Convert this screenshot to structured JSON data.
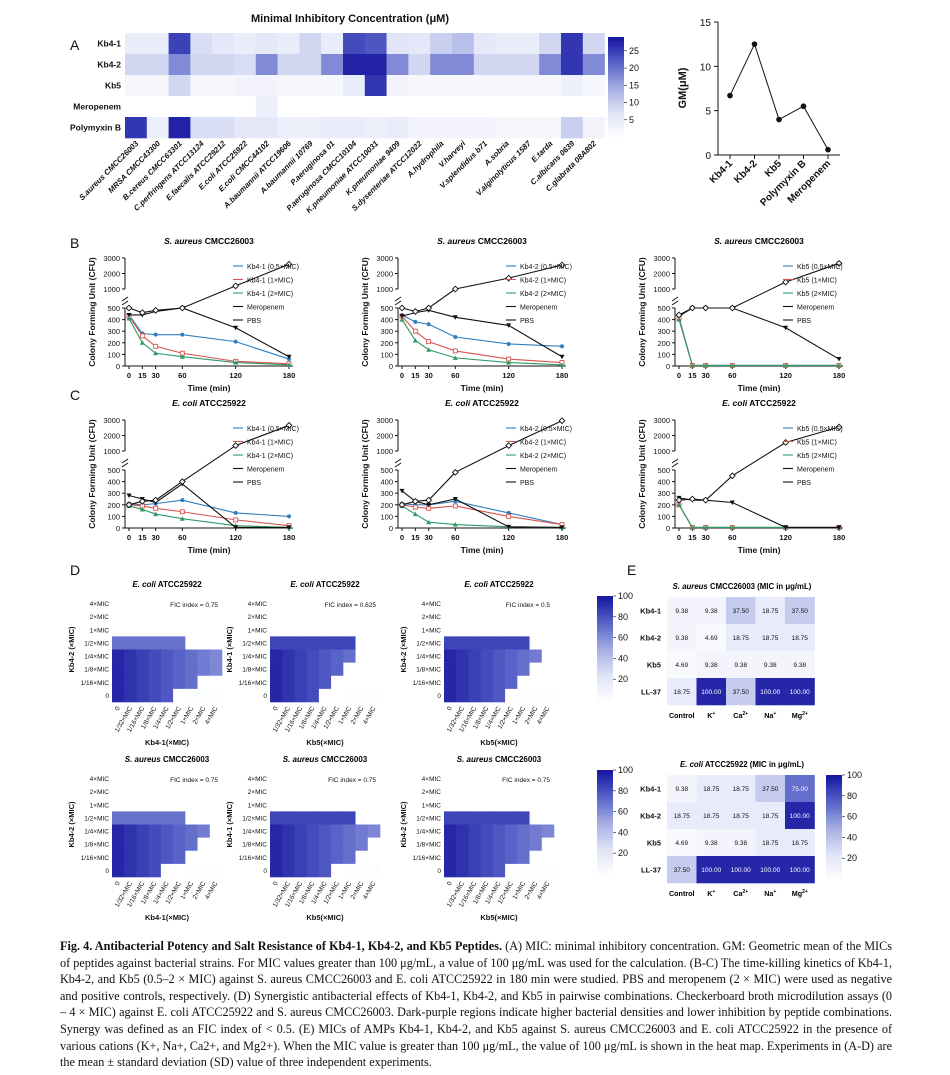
{
  "colors": {
    "dark": "#1a1aa0",
    "mid": "#5c6ad0",
    "light": "#c7cdee",
    "vlight": "#eef0fb",
    "white": "#ffffff",
    "kb1": "#2e7fc0",
    "kb2": "#d9534f",
    "kb3": "#2e9b66",
    "mero": "#111111",
    "pbs": "#111111"
  },
  "panelA": {
    "label": "A",
    "title": "Minimal Inhibitory Concentration (μM)",
    "rows": [
      "Kb4-1",
      "Kb4-2",
      "Kb5",
      "Meropenem",
      "Polymyxin B"
    ],
    "cols": [
      "S.aureus CMCC26003",
      "MRSA CMCC43300",
      "B.cereus CMCC63301",
      "C.perfringens ATCC13124",
      "E.faecalis ATCC29212",
      "E.coli ATCC25922",
      "E.coli CMCC44102",
      "A.baumannii ATCC19606",
      "A.baumannii 10769",
      "P.aeruginosa 01",
      "P.aeruginosa CMCC10104",
      "K.pneumoniae ATCC10031",
      "K.pneumoniae 9409",
      "S.dysenteriae ATCC12022",
      "A.hydrophila",
      "V.harveyi",
      "V.splendidus b71",
      "A.sobria",
      "V.alginolyticus 1587",
      "E.tarda",
      "C.albicans 0639",
      "C.glabrata 08A802"
    ],
    "values": [
      [
        5,
        5,
        25,
        8,
        6,
        5,
        6,
        5,
        9,
        5,
        24,
        23,
        7,
        6,
        10,
        12,
        6,
        5,
        5,
        9,
        26,
        9
      ],
      [
        9,
        9,
        18,
        9,
        9,
        8,
        18,
        9,
        9,
        18,
        28,
        28,
        18,
        9,
        18,
        18,
        9,
        9,
        9,
        18,
        26,
        18
      ],
      [
        2,
        2,
        9,
        2,
        2,
        3,
        3,
        2,
        2,
        2,
        5,
        26,
        3,
        2,
        2,
        2,
        2,
        2,
        2,
        2,
        4,
        2
      ],
      [
        0,
        0,
        0,
        0,
        0,
        0,
        4,
        0,
        0,
        0,
        0,
        0,
        0,
        0,
        0,
        0,
        0,
        0,
        0,
        0,
        0,
        0
      ],
      [
        26,
        4,
        28,
        8,
        8,
        6,
        6,
        4,
        4,
        5,
        5,
        4,
        5,
        3,
        3,
        3,
        3,
        2,
        2,
        2,
        10,
        3
      ]
    ],
    "colorbar": {
      "ticks": [
        "25",
        "20",
        "15",
        "10",
        "5"
      ]
    }
  },
  "panelGM": {
    "ylabel": "GM(μM)",
    "chart_data": {
      "type": "line",
      "categories": [
        "Kb4-1",
        "Kb4-2",
        "Kb5",
        "Polymyxin B",
        "Meropenem"
      ],
      "values": [
        6.7,
        12.5,
        4.0,
        5.5,
        0.6
      ],
      "ylim": [
        0,
        15
      ],
      "yticks": [
        "0",
        "5",
        "10",
        "15"
      ],
      "ylabel": "GM(μM)"
    }
  },
  "panelB": {
    "label": "B"
  },
  "panelC": {
    "label": "C"
  },
  "killcurves": {
    "xlabel": "Time (min)",
    "ylabel": "Colony Forming Unit (CFU)",
    "xticks": [
      "0",
      "15",
      "30",
      "60",
      "120",
      "180"
    ],
    "yticksLow": [
      "0",
      "100",
      "200",
      "300",
      "400",
      "500"
    ],
    "yticksHigh": [
      "1000",
      "2000",
      "3000"
    ],
    "chart_data": [
      {
        "type": "line",
        "title_sp": "S. aureus",
        "title_strain": " CMCC26003",
        "series": [
          {
            "name": "Kb4-1 (0.5×MIC)",
            "values": [
              440,
              280,
              270,
              270,
              210,
              60
            ]
          },
          {
            "name": "Kb4-1 (1×MIC)",
            "values": [
              430,
              260,
              170,
              110,
              40,
              20
            ]
          },
          {
            "name": "Kb4-1 (2×MIC)",
            "values": [
              410,
              200,
              110,
              80,
              30,
              10
            ]
          },
          {
            "name": "Meropenem",
            "values": [
              440,
              440,
              470,
              580,
              330,
              80
            ]
          },
          {
            "name": "PBS",
            "values": [
              520,
              460,
              480,
              540,
              1200,
              2600
            ]
          }
        ]
      },
      {
        "type": "line",
        "title_sp": "S. aureus",
        "title_strain": " CMCC26003",
        "series": [
          {
            "name": "Kb4-2 (0.5×MIC)",
            "values": [
              440,
              380,
              360,
              250,
              190,
              170
            ]
          },
          {
            "name": "Kb4-2 (1×MIC)",
            "values": [
              430,
              300,
              210,
              130,
              60,
              30
            ]
          },
          {
            "name": "Kb4-2 (2×MIC)",
            "values": [
              400,
              220,
              140,
              70,
              30,
              10
            ]
          },
          {
            "name": "Meropenem",
            "values": [
              430,
              460,
              480,
              420,
              350,
              80
            ]
          },
          {
            "name": "PBS",
            "values": [
              500,
              470,
              520,
              750,
              1700,
              2550
            ]
          }
        ]
      },
      {
        "type": "line",
        "title_sp": "S. aureus",
        "title_strain": " CMCC26003",
        "series": [
          {
            "name": "Kb5 (0.5×MIC)",
            "values": [
              420,
              5,
              5,
              5,
              5,
              5
            ]
          },
          {
            "name": "Kb5 (1×MIC)",
            "values": [
              410,
              5,
              5,
              5,
              5,
              5
            ]
          },
          {
            "name": "Kb5 (2×MIC)",
            "values": [
              400,
              5,
              5,
              5,
              5,
              5
            ]
          },
          {
            "name": "Meropenem",
            "values": [
              430,
              500,
              580,
              580,
              330,
              60
            ]
          },
          {
            "name": "PBS",
            "values": [
              440,
              500,
              610,
              700,
              1450,
              2650
            ]
          }
        ]
      },
      {
        "type": "line",
        "title_sp": "E. coli",
        "title_strain": " ATCC25922",
        "series": [
          {
            "name": "Kb4-1 (0.5×MIC)",
            "values": [
              210,
              200,
              210,
              240,
              130,
              100
            ]
          },
          {
            "name": "Kb4-1 (1×MIC)",
            "values": [
              200,
              190,
              170,
              140,
              70,
              20
            ]
          },
          {
            "name": "Kb4-1 (2×MIC)",
            "values": [
              190,
              160,
              120,
              80,
              20,
              5
            ]
          },
          {
            "name": "Meropenem",
            "values": [
              280,
              250,
              220,
              380,
              5,
              5
            ]
          },
          {
            "name": "PBS",
            "values": [
              200,
              230,
              240,
              400,
              1350,
              2650
            ]
          }
        ]
      },
      {
        "type": "line",
        "title_sp": "E. coli",
        "title_strain": " ATCC25922",
        "series": [
          {
            "name": "Kb4-2 (0.5×MIC)",
            "values": [
              210,
              200,
              200,
              230,
              130,
              30
            ]
          },
          {
            "name": "Kb4-2 (1×MIC)",
            "values": [
              200,
              180,
              170,
              190,
              100,
              30
            ]
          },
          {
            "name": "Kb4-2 (2×MIC)",
            "values": [
              190,
              120,
              50,
              30,
              10,
              5
            ]
          },
          {
            "name": "Meropenem",
            "values": [
              320,
              230,
              200,
              250,
              10,
              5
            ]
          },
          {
            "name": "PBS",
            "values": [
              200,
              230,
              240,
              480,
              1350,
              2950
            ]
          }
        ]
      },
      {
        "type": "line",
        "title_sp": "E. coli",
        "title_strain": " ATCC25922",
        "series": [
          {
            "name": "Kb5 (0.5×MIC)",
            "values": [
              200,
              5,
              5,
              5,
              5,
              5
            ]
          },
          {
            "name": "Kb5 (1×MIC)",
            "values": [
              200,
              5,
              5,
              5,
              5,
              5
            ]
          },
          {
            "name": "Kb5 (2×MIC)",
            "values": [
              200,
              5,
              5,
              5,
              5,
              5
            ]
          },
          {
            "name": "Meropenem",
            "values": [
              260,
              240,
              240,
              220,
              5,
              5
            ]
          },
          {
            "name": "PBS",
            "values": [
              240,
              250,
              240,
              450,
              1550,
              2550
            ]
          }
        ]
      }
    ]
  },
  "panelD": {
    "label": "D",
    "yticks": [
      "4×MIC",
      "2×MIC",
      "1×MIC",
      "1/2×MIC",
      "1/4×MIC",
      "1/8×MIC",
      "1/16×MIC",
      "0"
    ],
    "xticks": [
      "0",
      "1/32×MIC",
      "1/16×MIC",
      "1/8×MIC",
      "1/4×MIC",
      "1/2×MIC",
      "1×MIC",
      "2×MIC",
      "4×MIC"
    ],
    "colorbar": [
      "100",
      "80",
      "60",
      "40",
      "20"
    ],
    "boards": [
      {
        "sp": "E. coli",
        "strain": " ATCC25922",
        "fic": "FIC index = 0.75",
        "xlabel": "Kb4-1(×MIC)",
        "ylabel": "Kb4-2 (×MIC)",
        "mode": "a"
      },
      {
        "sp": "E. coli",
        "strain": " ATCC25922",
        "fic": "FIC index = 0.625",
        "xlabel": "Kb5(×MIC)",
        "ylabel": "Kb4-1 (×MIC)",
        "mode": "b"
      },
      {
        "sp": "E. coli",
        "strain": " ATCC25922",
        "fic": "FIC index = 0.5",
        "xlabel": "Kb5(×MIC)",
        "ylabel": "Kb4-2 (×MIC)",
        "mode": "c"
      },
      {
        "sp": "S. aureus",
        "strain": " CMCC26003",
        "fic": "FIC index = 0.75",
        "xlabel": "Kb4-1(×MIC)",
        "ylabel": "Kb4-2 (×MIC)",
        "mode": "d"
      },
      {
        "sp": "S. aureus",
        "strain": " CMCC26003",
        "fic": "FIC index = 0.75",
        "xlabel": "Kb5(×MIC)",
        "ylabel": "Kb4-1 (×MIC)",
        "mode": "e"
      },
      {
        "sp": "S. aureus",
        "strain": " CMCC26003",
        "fic": "FIC index = 0.75",
        "xlabel": "Kb5(×MIC)",
        "ylabel": "Kb4-2 (×MIC)",
        "mode": "f"
      }
    ]
  },
  "panelE": {
    "label": "E",
    "colorbar": [
      "100",
      "80",
      "60",
      "40",
      "20"
    ],
    "cols": [
      "Control",
      "K+",
      "Ca2+",
      "Na+",
      "Mg2+"
    ],
    "tables": [
      {
        "sp": "S. aureus",
        "strain": " CMCC26003 (MIC in μg/mL)",
        "rows": [
          {
            "name": "Kb4-1",
            "vals": [
              "9.38",
              "9.38",
              "37.50",
              "18.75",
              "37.50"
            ]
          },
          {
            "name": "Kb4-2",
            "vals": [
              "9.38",
              "4.69",
              "18.75",
              "18.75",
              "18.75"
            ]
          },
          {
            "name": "Kb5",
            "vals": [
              "4.69",
              "9.38",
              "9.38",
              "9.38",
              "9.38"
            ]
          },
          {
            "name": "LL-37",
            "vals": [
              "18.75",
              "100.00",
              "37.50",
              "100.00",
              "100.00"
            ]
          }
        ]
      },
      {
        "sp": "E. coli",
        "strain": " ATCC25922 (MIC in μg/mL)",
        "rows": [
          {
            "name": "Kb4-1",
            "vals": [
              "9.38",
              "18.75",
              "18.75",
              "37.50",
              "75.00"
            ]
          },
          {
            "name": "Kb4-2",
            "vals": [
              "18.75",
              "18.75",
              "18.75",
              "18.75",
              "100.00"
            ]
          },
          {
            "name": "Kb5",
            "vals": [
              "4.69",
              "9.38",
              "9.38",
              "18.75",
              "18.75"
            ]
          },
          {
            "name": "LL-37",
            "vals": [
              "37.50",
              "100.00",
              "100.00",
              "100.00",
              "100.00"
            ]
          }
        ]
      }
    ]
  },
  "caption": {
    "title": "Fig. 4.  Antibacterial Potency and Salt Resistance of Kb4-1, Kb4-2, and Kb5 Peptides.",
    "body": " (A) MIC: minimal inhibitory concentration. GM: Geometric mean of the MICs of peptides against bacterial strains. For MIC values greater than 100 μg/mL, a value of 100 μg/mL was used for the calculation. (B-C) The time-killing kinetics of Kb4-1, Kb4-2, and Kb5 (0.5–2 × MIC) against S. aureus CMCC26003 and E. coli ATCC25922 in 180 min were studied. PBS and meropenem (2 × MIC) were used as negative and positive controls, respectively. (D) Synergistic antibacterial effects of Kb4-1, Kb4-2, and Kb5 in pairwise combinations. Checkerboard broth microdilution assays (0 – 4 × MIC) against E. coli ATCC25922 and S. aureus CMCC26003. Dark-purple regions indicate higher bacterial densities and lower inhibition by peptide combinations. Synergy was defined as an FIC index of < 0.5. (E) MICs of AMPs Kb4-1, Kb4-2, and Kb5 against S. aureus CMCC26003 and E. coli ATCC25922 in the presence of various cations (K+, Na+, Ca2+, and Mg2+). When the MIC value is greater than 100 μg/mL, the value of 100 μg/mL is shown in the heat map. Experiments in (A-D) are the mean ± standard deviation (SD) value of three independent experiments."
  }
}
